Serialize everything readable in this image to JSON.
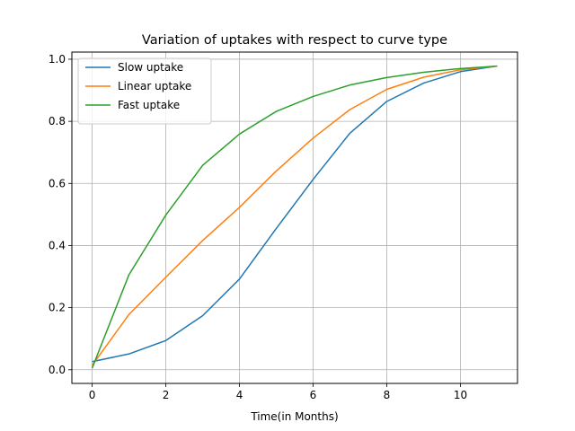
{
  "chart_data": {
    "type": "line",
    "title": "Variation of uptakes with respect to curve type",
    "xlabel": "Time(in Months)",
    "ylabel": "",
    "xlim": [
      -0.55,
      11.55
    ],
    "ylim": [
      -0.044,
      1.023
    ],
    "xticks": [
      0,
      2,
      4,
      6,
      8,
      10
    ],
    "yticks": [
      0.0,
      0.2,
      0.4,
      0.6,
      0.8,
      1.0
    ],
    "xtick_labels": [
      "0",
      "2",
      "4",
      "6",
      "8",
      "10"
    ],
    "ytick_labels": [
      "0.0",
      "0.2",
      "0.4",
      "0.6",
      "0.8",
      "1.0"
    ],
    "grid": true,
    "legend_position": "upper-left",
    "x": [
      0,
      1,
      2,
      3,
      4,
      5,
      6,
      7,
      8,
      9,
      10,
      11
    ],
    "series": [
      {
        "name": "Slow uptake",
        "color": "#1f77b4",
        "values": [
          0.026,
          0.051,
          0.094,
          0.174,
          0.292,
          0.455,
          0.613,
          0.762,
          0.864,
          0.923,
          0.96,
          0.978
        ]
      },
      {
        "name": "Linear uptake",
        "color": "#ff7f0e",
        "values": [
          0.014,
          0.178,
          0.298,
          0.416,
          0.523,
          0.64,
          0.746,
          0.838,
          0.903,
          0.942,
          0.966,
          0.978
        ]
      },
      {
        "name": "Fast uptake",
        "color": "#2ca02c",
        "values": [
          0.005,
          0.306,
          0.498,
          0.658,
          0.759,
          0.832,
          0.88,
          0.917,
          0.941,
          0.958,
          0.97,
          0.978
        ]
      }
    ]
  }
}
